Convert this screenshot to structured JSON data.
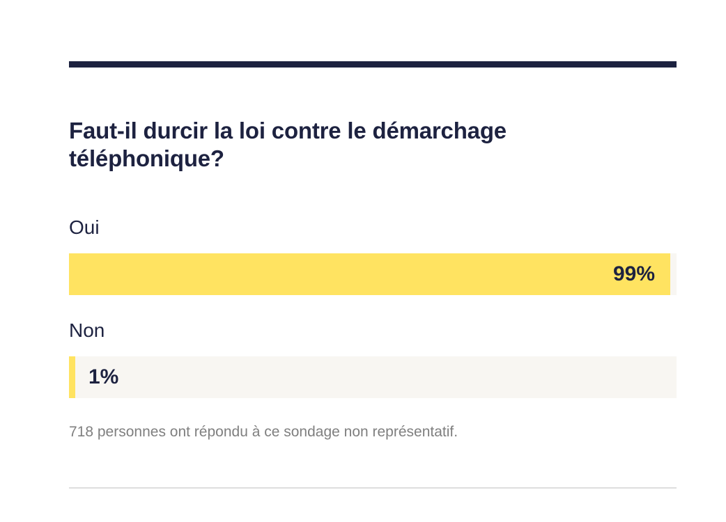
{
  "poll": {
    "question": "Faut-il durcir la loi contre le démarchage téléphonique?",
    "options": [
      {
        "label": "Oui",
        "percent_label": "99%"
      },
      {
        "label": "Non",
        "percent_label": "1%"
      }
    ],
    "note": "718 personnes ont répondu à ce sondage non représentatif."
  },
  "chart_data": {
    "type": "bar",
    "orientation": "horizontal",
    "categories": [
      "Oui",
      "Non"
    ],
    "values": [
      99,
      1
    ],
    "title": "Faut-il durcir la loi contre le démarchage téléphonique?",
    "xlim": [
      0,
      100
    ],
    "grid": false
  },
  "colors": {
    "accent": "#1d2240",
    "bar_fill": "#ffe361",
    "bar_track": "#f8f6f2",
    "note_text": "#7f7f7f",
    "divider": "#dedede"
  }
}
